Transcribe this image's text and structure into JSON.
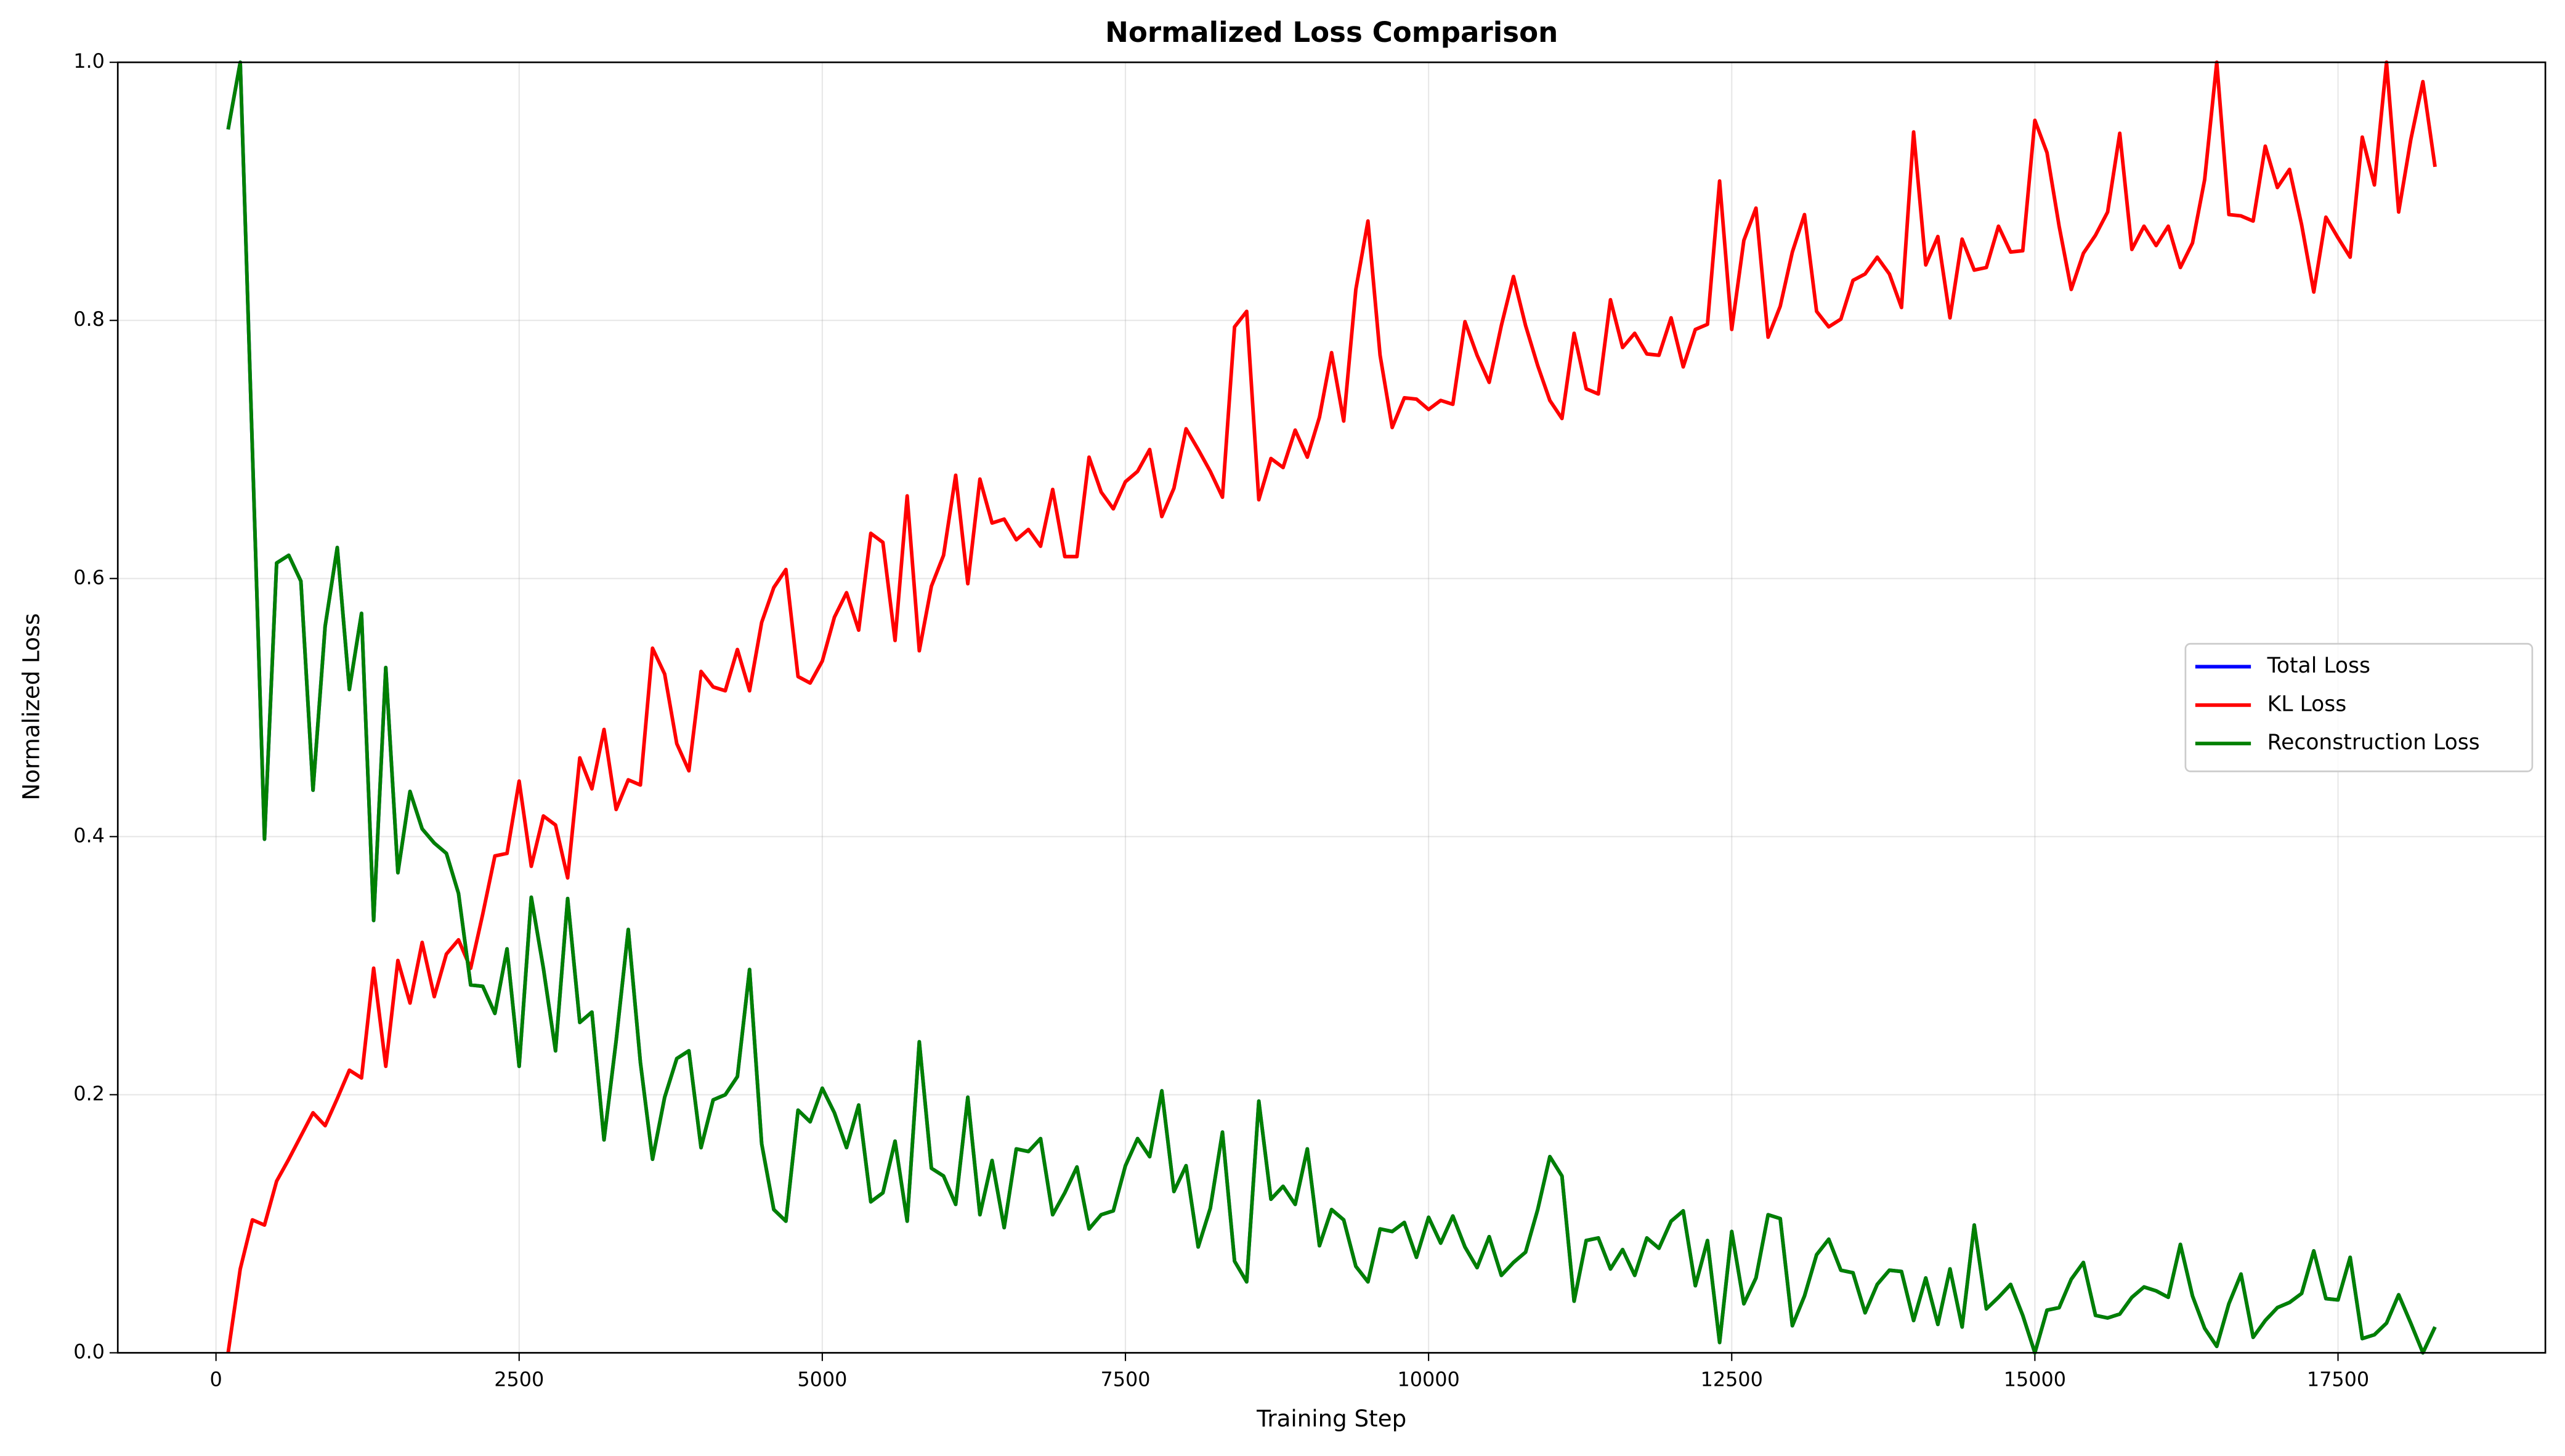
{
  "chart_data": {
    "type": "line",
    "title": "Normalized Loss Comparison",
    "xlabel": "Training Step",
    "ylabel": "Normalized Loss",
    "x": [
      100,
      200,
      300,
      400,
      500,
      600,
      700,
      800,
      900,
      1000,
      1100,
      1200,
      1300,
      1400,
      1500,
      1600,
      1700,
      1800,
      1900,
      2000,
      2100,
      2200,
      2300,
      2400,
      2500,
      2600,
      2700,
      2800,
      2900,
      3000,
      3100,
      3200,
      3300,
      3400,
      3500,
      3600,
      3700,
      3800,
      3900,
      4000,
      4100,
      4200,
      4300,
      4400,
      4500,
      4600,
      4700,
      4800,
      4900,
      5000,
      5100,
      5200,
      5300,
      5400,
      5500,
      5600,
      5700,
      5800,
      5900,
      6000,
      6100,
      6200,
      6300,
      6400,
      6500,
      6600,
      6700,
      6800,
      6900,
      7000,
      7100,
      7200,
      7300,
      7400,
      7500,
      7600,
      7700,
      7800,
      7900,
      8000,
      8100,
      8200,
      8300,
      8400,
      8500,
      8600,
      8700,
      8800,
      8900,
      9000,
      9100,
      9200,
      9300,
      9400,
      9500,
      9600,
      9700,
      9800,
      9900,
      10000,
      10100,
      10200,
      10300,
      10400,
      10500,
      10600,
      10700,
      10800,
      10900,
      11000,
      11100,
      11200,
      11300,
      11400,
      11500,
      11600,
      11700,
      11800,
      11900,
      12000,
      12100,
      12200,
      12300,
      12400,
      12500,
      12600,
      12700,
      12800,
      12900,
      13000,
      13100,
      13200,
      13300,
      13400,
      13500,
      13600,
      13700,
      13800,
      13900,
      14000,
      14100,
      14200,
      14300,
      14400,
      14500,
      14600,
      14700,
      14800,
      14900,
      15000,
      15100,
      15200,
      15300,
      15400,
      15500,
      15600,
      15700,
      15800,
      15900,
      16000,
      16100,
      16200,
      16300,
      16400,
      16500,
      16600,
      16700,
      16800,
      16900,
      17000,
      17100,
      17200,
      17300,
      17400,
      17500,
      17600,
      17700,
      17800,
      17900,
      18000,
      18100,
      18200,
      18300
    ],
    "series": [
      {
        "name": "Total Loss",
        "color": "#0000ff",
        "values": [
          0.948,
          1.0,
          0.7,
          0.398,
          0.612,
          0.618,
          0.598,
          0.436,
          0.563,
          0.624,
          0.514,
          0.573,
          0.335,
          0.531,
          0.372,
          0.435,
          0.406,
          0.395,
          0.387,
          0.356,
          0.285,
          0.284,
          0.263,
          0.313,
          0.222,
          0.353,
          0.298,
          0.234,
          0.352,
          0.256,
          0.264,
          0.165,
          0.242,
          0.328,
          0.225,
          0.15,
          0.198,
          0.228,
          0.234,
          0.159,
          0.196,
          0.2,
          0.214,
          0.297,
          0.162,
          0.111,
          0.102,
          0.188,
          0.179,
          0.205,
          0.186,
          0.159,
          0.192,
          0.117,
          0.124,
          0.164,
          0.102,
          0.241,
          0.143,
          0.137,
          0.115,
          0.198,
          0.107,
          0.149,
          0.097,
          0.158,
          0.156,
          0.166,
          0.107,
          0.124,
          0.144,
          0.096,
          0.107,
          0.11,
          0.145,
          0.166,
          0.152,
          0.203,
          0.125,
          0.145,
          0.082,
          0.112,
          0.171,
          0.071,
          0.055,
          0.195,
          0.119,
          0.129,
          0.115,
          0.158,
          0.083,
          0.111,
          0.103,
          0.067,
          0.055,
          0.096,
          0.094,
          0.101,
          0.074,
          0.105,
          0.085,
          0.106,
          0.082,
          0.066,
          0.09,
          0.06,
          0.07,
          0.078,
          0.111,
          0.152,
          0.137,
          0.04,
          0.087,
          0.089,
          0.065,
          0.08,
          0.06,
          0.089,
          0.081,
          0.102,
          0.11,
          0.052,
          0.087,
          0.008,
          0.094,
          0.038,
          0.058,
          0.107,
          0.104,
          0.021,
          0.044,
          0.076,
          0.088,
          0.064,
          0.062,
          0.031,
          0.053,
          0.064,
          0.063,
          0.025,
          0.058,
          0.022,
          0.065,
          0.02,
          0.099,
          0.034,
          0.043,
          0.053,
          0.029,
          0.0,
          0.033,
          0.035,
          0.057,
          0.07,
          0.029,
          0.027,
          0.03,
          0.043,
          0.051,
          0.048,
          0.043,
          0.084,
          0.044,
          0.019,
          0.005,
          0.038,
          0.061,
          0.012,
          0.025,
          0.035,
          0.039,
          0.046,
          0.079,
          0.042,
          0.041,
          0.074,
          0.011,
          0.014,
          0.023,
          0.045,
          0.023,
          0.0,
          0.02
        ]
      },
      {
        "name": "KL Loss",
        "color": "#ff0000",
        "values": [
          0.0,
          0.065,
          0.103,
          0.099,
          0.133,
          0.15,
          0.168,
          0.186,
          0.176,
          0.197,
          0.219,
          0.213,
          0.298,
          0.222,
          0.304,
          0.271,
          0.318,
          0.276,
          0.309,
          0.32,
          0.298,
          0.34,
          0.385,
          0.387,
          0.443,
          0.377,
          0.416,
          0.409,
          0.368,
          0.461,
          0.437,
          0.483,
          0.421,
          0.444,
          0.44,
          0.546,
          0.526,
          0.472,
          0.451,
          0.528,
          0.516,
          0.513,
          0.545,
          0.513,
          0.566,
          0.593,
          0.607,
          0.524,
          0.519,
          0.536,
          0.57,
          0.589,
          0.56,
          0.635,
          0.628,
          0.552,
          0.664,
          0.544,
          0.594,
          0.618,
          0.68,
          0.596,
          0.677,
          0.643,
          0.646,
          0.63,
          0.638,
          0.625,
          0.669,
          0.617,
          0.617,
          0.694,
          0.667,
          0.654,
          0.675,
          0.683,
          0.7,
          0.648,
          0.67,
          0.716,
          0.7,
          0.683,
          0.663,
          0.795,
          0.807,
          0.661,
          0.693,
          0.686,
          0.715,
          0.694,
          0.725,
          0.775,
          0.722,
          0.824,
          0.877,
          0.773,
          0.717,
          0.74,
          0.739,
          0.731,
          0.738,
          0.735,
          0.799,
          0.773,
          0.752,
          0.796,
          0.834,
          0.796,
          0.765,
          0.738,
          0.724,
          0.79,
          0.747,
          0.743,
          0.816,
          0.779,
          0.79,
          0.774,
          0.773,
          0.802,
          0.764,
          0.793,
          0.797,
          0.908,
          0.793,
          0.862,
          0.887,
          0.787,
          0.811,
          0.853,
          0.882,
          0.807,
          0.795,
          0.801,
          0.831,
          0.836,
          0.849,
          0.836,
          0.81,
          0.946,
          0.843,
          0.865,
          0.802,
          0.863,
          0.839,
          0.841,
          0.873,
          0.853,
          0.854,
          0.955,
          0.93,
          0.873,
          0.824,
          0.852,
          0.866,
          0.884,
          0.945,
          0.855,
          0.873,
          0.858,
          0.873,
          0.841,
          0.86,
          0.909,
          1.0,
          0.882,
          0.881,
          0.877,
          0.935,
          0.903,
          0.917,
          0.874,
          0.822,
          0.88,
          0.864,
          0.849,
          0.942,
          0.905,
          1.0,
          0.884,
          0.94,
          0.985,
          0.919
        ]
      },
      {
        "name": "Reconstruction Loss",
        "color": "#008000",
        "values": [
          0.948,
          1.0,
          0.7,
          0.398,
          0.612,
          0.618,
          0.598,
          0.436,
          0.563,
          0.624,
          0.514,
          0.573,
          0.335,
          0.531,
          0.372,
          0.435,
          0.406,
          0.395,
          0.387,
          0.356,
          0.285,
          0.284,
          0.263,
          0.313,
          0.222,
          0.353,
          0.298,
          0.234,
          0.352,
          0.256,
          0.264,
          0.165,
          0.242,
          0.328,
          0.225,
          0.15,
          0.198,
          0.228,
          0.234,
          0.159,
          0.196,
          0.2,
          0.214,
          0.297,
          0.162,
          0.111,
          0.102,
          0.188,
          0.179,
          0.205,
          0.186,
          0.159,
          0.192,
          0.117,
          0.124,
          0.164,
          0.102,
          0.241,
          0.143,
          0.137,
          0.115,
          0.198,
          0.107,
          0.149,
          0.097,
          0.158,
          0.156,
          0.166,
          0.107,
          0.124,
          0.144,
          0.096,
          0.107,
          0.11,
          0.145,
          0.166,
          0.152,
          0.203,
          0.125,
          0.145,
          0.082,
          0.112,
          0.171,
          0.071,
          0.055,
          0.195,
          0.119,
          0.129,
          0.115,
          0.158,
          0.083,
          0.111,
          0.103,
          0.067,
          0.055,
          0.096,
          0.094,
          0.101,
          0.074,
          0.105,
          0.085,
          0.106,
          0.082,
          0.066,
          0.09,
          0.06,
          0.07,
          0.078,
          0.111,
          0.152,
          0.137,
          0.04,
          0.087,
          0.089,
          0.065,
          0.08,
          0.06,
          0.089,
          0.081,
          0.102,
          0.11,
          0.052,
          0.087,
          0.008,
          0.094,
          0.038,
          0.058,
          0.107,
          0.104,
          0.021,
          0.044,
          0.076,
          0.088,
          0.064,
          0.062,
          0.031,
          0.053,
          0.064,
          0.063,
          0.025,
          0.058,
          0.022,
          0.065,
          0.02,
          0.099,
          0.034,
          0.043,
          0.053,
          0.029,
          0.0,
          0.033,
          0.035,
          0.057,
          0.07,
          0.029,
          0.027,
          0.03,
          0.043,
          0.051,
          0.048,
          0.043,
          0.084,
          0.044,
          0.019,
          0.005,
          0.038,
          0.061,
          0.012,
          0.025,
          0.035,
          0.039,
          0.046,
          0.079,
          0.042,
          0.041,
          0.074,
          0.011,
          0.014,
          0.023,
          0.045,
          0.023,
          0.0,
          0.02
        ]
      }
    ],
    "xlim": [
      -810,
      19210
    ],
    "ylim": [
      0,
      1
    ],
    "xticks": [
      0,
      2500,
      5000,
      7500,
      10000,
      12500,
      15000,
      17500
    ],
    "yticks": [
      {
        "value": 0,
        "label": "0.0"
      },
      {
        "value": 0.2,
        "label": "0.2"
      },
      {
        "value": 0.4,
        "label": "0.4"
      },
      {
        "value": 0.6,
        "label": "0.6"
      },
      {
        "value": 0.8,
        "label": "0.8"
      },
      {
        "value": 1,
        "label": "1.0"
      }
    ],
    "grid": true,
    "legend": "right"
  }
}
